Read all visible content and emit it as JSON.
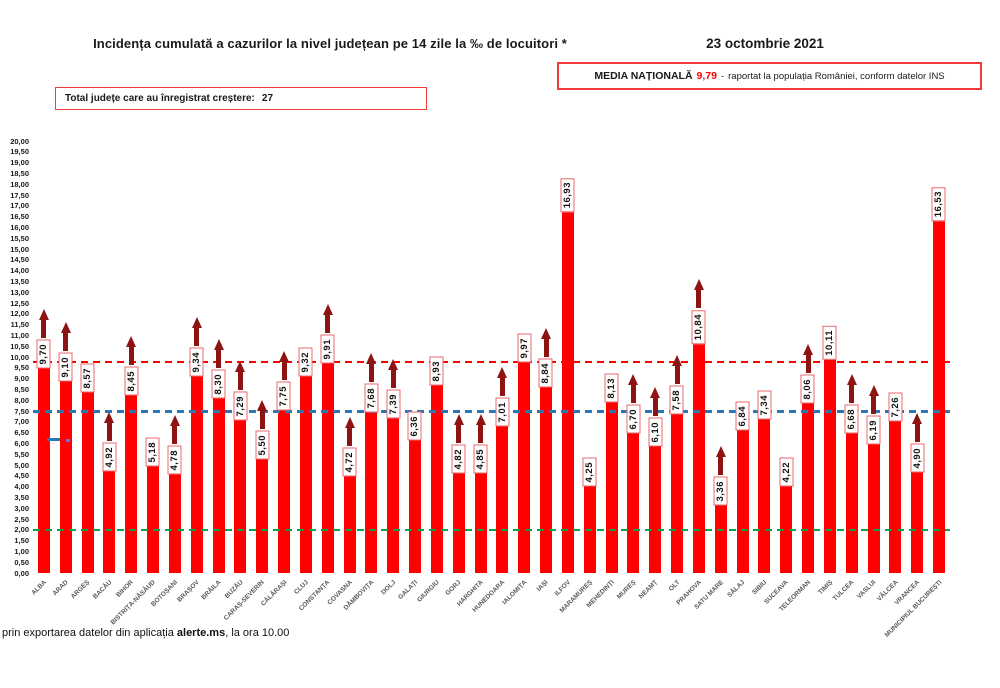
{
  "header": {
    "title": "Incidența cumulată a cazurilor la nivel județean pe 14 zile la ‰ de locuitori *",
    "date": "23 octombrie 2021",
    "national_average": {
      "label": "MEDIA NAȚIONALĂ",
      "value": "9,79",
      "dash": "-",
      "note": "raportat la populația României, conform datelor INS"
    },
    "increase_total": {
      "label": "Total județe care au înregistrat creștere:",
      "count": "27"
    }
  },
  "footer": {
    "prefix": "prin exportarea datelor din aplicația ",
    "bold": "alerte.ms",
    "suffix": ", la ora 10.00"
  },
  "chart_data": {
    "type": "bar",
    "title": "Incidența cumulată a cazurilor la nivel județean pe 14 zile la ‰ de locuitori *",
    "xlabel": "",
    "ylabel": "",
    "ylim": [
      0,
      20
    ],
    "ytick_step": 0.5,
    "ytick_decimal": "comma",
    "grid": false,
    "bar_color": "#ff0000",
    "arrow_color": "#8e1414",
    "label_border_color": "#e8696b",
    "reference_lines": [
      {
        "name": "media-nationala",
        "value": 9.79,
        "color": "#ff0000"
      },
      {
        "name": "prag-albastru",
        "value": 7.5,
        "color": "#2e75b6"
      },
      {
        "name": "prag-verde",
        "value": 2.0,
        "color": "#00a550"
      }
    ],
    "categories": [
      "ALBA",
      "ARAD",
      "ARGEȘ",
      "BACĂU",
      "BIHOR",
      "BISTRIȚA-NĂSĂUD",
      "BOTOȘANI",
      "BRAȘOV",
      "BRĂILA",
      "BUZĂU",
      "CARAȘ-SEVERIN",
      "CĂLĂRAȘI",
      "CLUJ",
      "CONSTANȚA",
      "COVASNA",
      "DÂMBOVIȚA",
      "DOLJ",
      "GALAȚI",
      "GIURGIU",
      "GORJ",
      "HARGHITA",
      "HUNEDOARA",
      "IALOMIȚA",
      "IAȘI",
      "ILFOV",
      "MARAMUREȘ",
      "MEHEDINȚI",
      "MUREȘ",
      "NEAMȚ",
      "OLT",
      "PRAHOVA",
      "SATU MARE",
      "SĂLAJ",
      "SIBIU",
      "SUCEAVA",
      "TELEORMAN",
      "TIMIȘ",
      "TULCEA",
      "VASLUI",
      "VÂLCEA",
      "VRANCEA",
      "MUNICIPIUL BUCUREȘTI"
    ],
    "values": [
      9.7,
      9.1,
      8.57,
      4.92,
      8.45,
      5.18,
      4.78,
      9.34,
      8.3,
      7.29,
      5.5,
      7.75,
      9.32,
      9.91,
      4.72,
      7.68,
      7.39,
      6.36,
      8.93,
      4.82,
      4.85,
      7.01,
      9.97,
      8.84,
      16.93,
      4.25,
      8.13,
      6.7,
      6.1,
      7.58,
      10.84,
      3.36,
      6.84,
      7.34,
      4.22,
      8.06,
      10.11,
      6.68,
      6.19,
      7.26,
      4.9,
      16.53
    ],
    "value_labels": [
      "9,70",
      "9,10",
      "8,57",
      "4,92",
      "8,45",
      "5,18",
      "4,78",
      "9,34",
      "8,30",
      "7,29",
      "5,50",
      "7,75",
      "9,32",
      "9,91",
      "4,72",
      "7,68",
      "7,39",
      "6,36",
      "8,93",
      "4,82",
      "4,85",
      "7,01",
      "9,97",
      "8,84",
      "16,93",
      "4,25",
      "8,13",
      "6,70",
      "6,10",
      "7,58",
      "10,84",
      "3,36",
      "6,84",
      "7,34",
      "4,22",
      "8,06",
      "10,11",
      "6,68",
      "6,19",
      "7,26",
      "4,90",
      "16,53"
    ],
    "increase": [
      true,
      true,
      false,
      true,
      true,
      false,
      true,
      true,
      true,
      true,
      true,
      true,
      false,
      true,
      true,
      true,
      true,
      false,
      false,
      true,
      true,
      true,
      false,
      true,
      false,
      false,
      false,
      true,
      true,
      true,
      true,
      true,
      false,
      false,
      false,
      true,
      false,
      true,
      true,
      false,
      true,
      false
    ]
  }
}
